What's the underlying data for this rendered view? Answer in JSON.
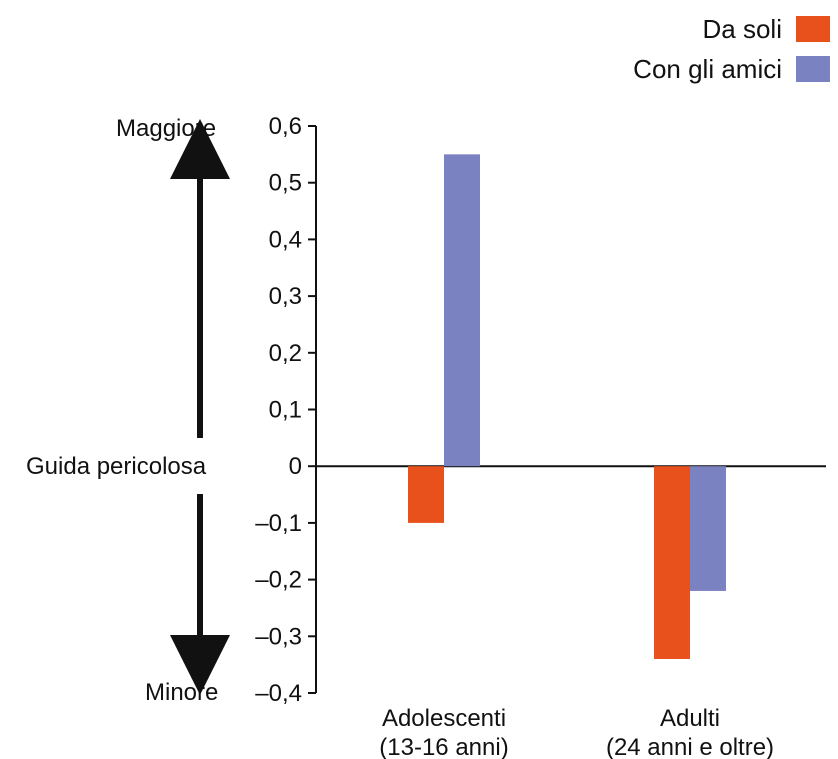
{
  "chart_data": {
    "type": "bar",
    "categories": [
      "Adolescenti\n(13-16 anni)",
      "Adulti\n(24 anni e oltre)"
    ],
    "series": [
      {
        "name": "Da soli",
        "values": [
          -0.1,
          -0.34
        ],
        "color": "#E8501C"
      },
      {
        "name": "Con gli amici",
        "values": [
          0.55,
          -0.22
        ],
        "color": "#7B82C2"
      }
    ],
    "ylim": [
      -0.4,
      0.6
    ],
    "yticks": [
      0.6,
      0.5,
      0.4,
      0.3,
      0.2,
      0.1,
      0,
      -0.1,
      -0.2,
      -0.3,
      -0.4
    ],
    "ytick_labels": [
      "0,6",
      "0,5",
      "0,4",
      "0,3",
      "0,2",
      "0,1",
      "0",
      "–0,1",
      "–0,2",
      "–0,3",
      "–0,4"
    ],
    "legend_position": "top-right",
    "side_annotations": {
      "top": "Maggiore",
      "middle": "Guida pericolosa",
      "bottom": "Minore"
    },
    "grid": false
  }
}
